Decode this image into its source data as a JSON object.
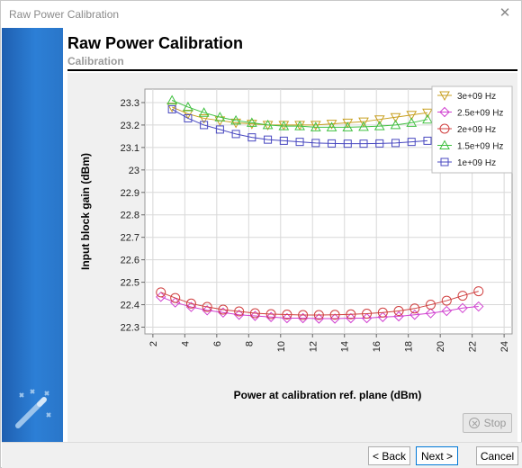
{
  "window": {
    "title": "Raw Power Calibration"
  },
  "header": {
    "title": "Raw Power Calibration",
    "subtitle": "Calibration"
  },
  "chart": {
    "xlabel": "Power at calibration ref. plane (dBm)",
    "ylabel": "Input block gain (dBm)"
  },
  "buttons": {
    "stop": "Stop",
    "back": "< Back",
    "next": "Next >",
    "cancel": "Cancel"
  },
  "icons": {
    "close": "close-icon",
    "wizard": "magic-wand-icon",
    "stop": "stop-icon"
  },
  "chart_data": {
    "type": "line",
    "xlabel": "Power at calibration ref. plane (dBm)",
    "ylabel": "Input block gain (dBm)",
    "xlim": [
      1.5,
      24.5
    ],
    "ylim": [
      22.27,
      23.36
    ],
    "xticks": [
      2,
      4,
      6,
      8,
      10,
      12,
      14,
      16,
      18,
      20,
      22,
      24
    ],
    "yticks": [
      22.3,
      22.4,
      22.5,
      22.6,
      22.7,
      22.8,
      22.9,
      23.0,
      23.1,
      23.2,
      23.3
    ],
    "ytick_labels": [
      "22.3",
      "22.4",
      "22.5",
      "22.6",
      "22.7",
      "22.8",
      "22.9",
      "23",
      "23.1",
      "23.2",
      "23.3"
    ],
    "grid": true,
    "legend_position": "top-right",
    "series": [
      {
        "name": "3e+09 Hz",
        "color": "#c8a020",
        "marker": "triangle-down",
        "x": [
          3.2,
          4.2,
          5.2,
          6.2,
          7.2,
          8.2,
          9.2,
          10.2,
          11.2,
          12.2,
          13.2,
          14.2,
          15.2,
          16.2,
          17.2,
          18.2,
          19.2
        ],
        "y": [
          23.28,
          23.25,
          23.23,
          23.22,
          23.21,
          23.205,
          23.2,
          23.2,
          23.2,
          23.2,
          23.205,
          23.21,
          23.215,
          23.225,
          23.235,
          23.245,
          23.255
        ]
      },
      {
        "name": "2.5e+09 Hz",
        "color": "#d040d0",
        "marker": "diamond",
        "x": [
          2.5,
          3.4,
          4.4,
          5.4,
          6.4,
          7.4,
          8.4,
          9.4,
          10.4,
          11.4,
          12.4,
          13.4,
          14.4,
          15.4,
          16.4,
          17.4,
          18.4,
          19.4,
          20.4,
          21.4,
          22.4
        ],
        "y": [
          22.435,
          22.41,
          22.39,
          22.375,
          22.365,
          22.355,
          22.35,
          22.345,
          22.34,
          22.34,
          22.338,
          22.338,
          22.34,
          22.34,
          22.345,
          22.348,
          22.355,
          22.362,
          22.372,
          22.385,
          22.392
        ]
      },
      {
        "name": "2e+09 Hz",
        "color": "#d04040",
        "marker": "circle",
        "x": [
          2.5,
          3.4,
          4.4,
          5.4,
          6.4,
          7.4,
          8.4,
          9.4,
          10.4,
          11.4,
          12.4,
          13.4,
          14.4,
          15.4,
          16.4,
          17.4,
          18.4,
          19.4,
          20.4,
          21.4,
          22.4
        ],
        "y": [
          22.455,
          22.43,
          22.405,
          22.39,
          22.378,
          22.37,
          22.362,
          22.358,
          22.356,
          22.354,
          22.354,
          22.355,
          22.357,
          22.36,
          22.365,
          22.372,
          22.383,
          22.4,
          22.418,
          22.44,
          22.46
        ]
      },
      {
        "name": "1.5e+09 Hz",
        "color": "#40c040",
        "marker": "triangle-up",
        "x": [
          3.2,
          4.2,
          5.2,
          6.2,
          7.2,
          8.2,
          9.2,
          10.2,
          11.2,
          12.2,
          13.2,
          14.2,
          15.2,
          16.2,
          17.2,
          18.2,
          19.2
        ],
        "y": [
          23.31,
          23.28,
          23.255,
          23.235,
          23.22,
          23.21,
          23.2,
          23.195,
          23.195,
          23.19,
          23.19,
          23.19,
          23.192,
          23.195,
          23.2,
          23.21,
          23.225
        ]
      },
      {
        "name": "1e+09 Hz",
        "color": "#4848c0",
        "marker": "square",
        "x": [
          3.2,
          4.2,
          5.2,
          6.2,
          7.2,
          8.2,
          9.2,
          10.2,
          11.2,
          12.2,
          13.2,
          14.2,
          15.2,
          16.2,
          17.2,
          18.2,
          19.2
        ],
        "y": [
          23.27,
          23.23,
          23.2,
          23.18,
          23.16,
          23.145,
          23.135,
          23.13,
          23.125,
          23.12,
          23.118,
          23.117,
          23.117,
          23.118,
          23.12,
          23.125,
          23.13
        ]
      }
    ]
  }
}
